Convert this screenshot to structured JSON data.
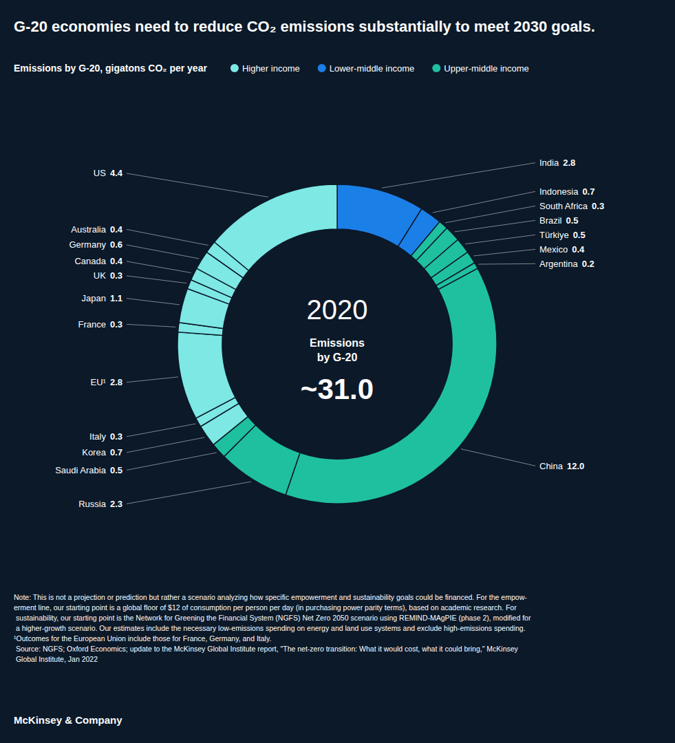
{
  "chart_data": {
    "type": "pie",
    "title": "G-20 economies need to reduce CO₂ emissions substantially to meet 2030 goals.",
    "subtitle": "Emissions by G-20, gigatons CO₂ per year",
    "categories": [
      "India",
      "Indonesia",
      "South Africa",
      "Brazil",
      "Türkiye",
      "Mexico",
      "Argentina",
      "China",
      "Russia",
      "Saudi Arabia",
      "Korea",
      "Italy",
      "EU¹",
      "France",
      "Japan",
      "UK",
      "Canada",
      "Germany",
      "Australia",
      "US"
    ],
    "values": [
      2.8,
      0.7,
      0.3,
      0.5,
      0.5,
      0.4,
      0.2,
      12.0,
      2.3,
      0.5,
      0.7,
      0.3,
      2.8,
      0.3,
      1.1,
      0.3,
      0.4,
      0.6,
      0.4,
      4.4
    ],
    "value_labels": [
      "2.8",
      "0.7",
      "0.3",
      "0.5",
      "0.5",
      "0.4",
      "0.2",
      "12.0",
      "2.3",
      "0.5",
      "0.7",
      "0.3",
      "2.8",
      "0.3",
      "1.1",
      "0.3",
      "0.4",
      "0.6",
      "0.4",
      "4.4"
    ],
    "colors": [
      "#1B7FE8",
      "#1B7FE8",
      "#1FC0A0",
      "#1FC0A0",
      "#1FC0A0",
      "#1FC0A0",
      "#1FC0A0",
      "#1FC0A0",
      "#1FC0A0",
      "#1FC0A0",
      "#7DE8E4",
      "#7DE8E4",
      "#7DE8E4",
      "#7DE8E4",
      "#7DE8E4",
      "#7DE8E4",
      "#7DE8E4",
      "#7DE8E4",
      "#7DE8E4",
      "#7DE8E4"
    ],
    "data_labels": true,
    "groups": [
      {
        "name": "Higher income",
        "color": "#7DE8E4"
      },
      {
        "name": "Lower-middle income",
        "color": "#1B7FE8"
      },
      {
        "name": "Upper-middle income",
        "color": "#1FC0A0"
      }
    ],
    "annotations": [
      "2020",
      "Emissions",
      "by G-20",
      "~31.0",
      "Note: This is not a projection or prediction but rather a scenario analyzing how specific empowerment and sustainability goals could be financed. For the empow-\nerment line, our starting point is a global floor of $12 of consumption per person per day (in purchasing power parity terms), based on academic research. For\n sustainability, our starting point is the Network for Greening the Financial System (NGFS) Net Zero 2050 scenario using REMIND-MAgPIE (phase 2), modified for\n a higher-growth scenario. Our estimates include the necessary low-emissions spending on energy and land use systems and exclude high-emissions spending.\n¹Outcomes for the European Union include those for France, Germany, and Italy.\n Source: NGFS; Oxford Economics; update to the McKinsey Global Institute report, \"The net-zero transition: What it would cost, what it could bring,\" McKinsey\n Global Institute, Jan 2022",
      "McKinsey & Company"
    ]
  }
}
